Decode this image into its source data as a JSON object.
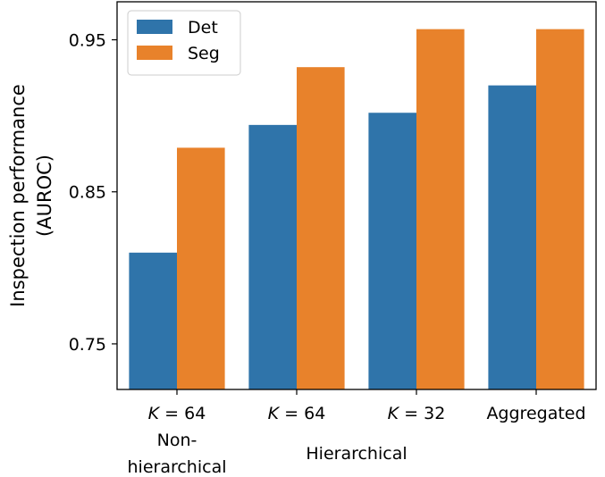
{
  "chart_data": {
    "type": "bar",
    "categories": [
      "K = 64",
      "K = 64",
      "K = 32",
      "Aggregated"
    ],
    "category_italic_prefix": "K",
    "group_labels": [
      {
        "text_lines": [
          "Non-",
          "hierarchical"
        ],
        "categories": [
          0
        ]
      },
      {
        "text_lines": [
          "Hierarchical"
        ],
        "categories": [
          1,
          2
        ]
      }
    ],
    "series": [
      {
        "name": "Det",
        "color": "#2f74aa",
        "values": [
          0.81,
          0.894,
          0.902,
          0.92
        ]
      },
      {
        "name": "Seg",
        "color": "#e8822b",
        "values": [
          0.879,
          0.932,
          0.957,
          0.957
        ]
      }
    ],
    "ylabel_lines": [
      "Inspection performance",
      "(AUROC)"
    ],
    "xlabel": "",
    "title": "",
    "ylim": [
      0.72,
      0.975
    ],
    "yticks": [
      0.75,
      0.85,
      0.95
    ],
    "ytick_labels": [
      "0.75",
      "0.85",
      "0.95"
    ],
    "legend": {
      "placement": "top-left",
      "frame": true
    },
    "grid": false
  }
}
